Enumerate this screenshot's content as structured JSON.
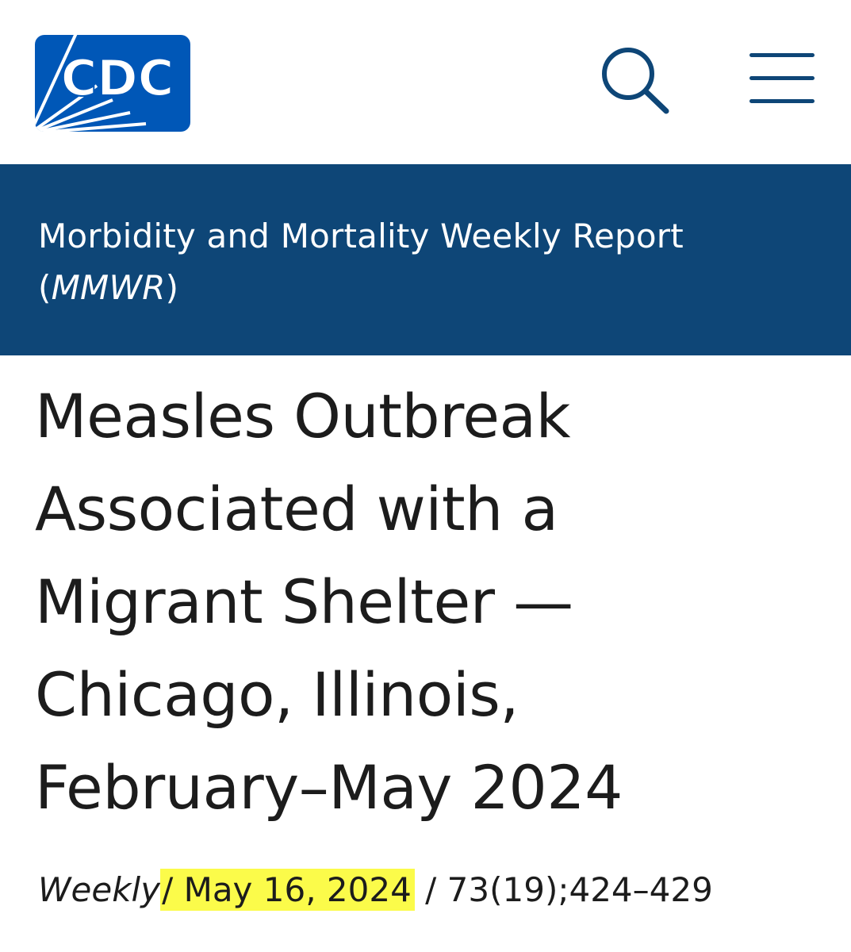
{
  "header": {
    "logo_text": "CDC",
    "logo_icon": "cdc-logo",
    "search_icon": "search-icon",
    "menu_icon": "hamburger-menu-icon"
  },
  "banner": {
    "title": "Morbidity and Mortality Weekly Report",
    "abbr_open": "(",
    "abbr": "MMWR",
    "abbr_close": ")"
  },
  "article": {
    "title_lines": [
      "Measles Outbreak",
      "Associated with a",
      "Migrant Shelter —",
      "Chicago, Illinois,",
      "February–May 2024"
    ]
  },
  "meta": {
    "series": "Weekly",
    "separator": "/",
    "date": "May 16, 2024",
    "citation": "73(19);424–429"
  },
  "colors": {
    "brand_blue": "#0e4677",
    "logo_blue": "#0057b7",
    "highlight": "#fbfb4a",
    "text": "#1c1c1c"
  }
}
